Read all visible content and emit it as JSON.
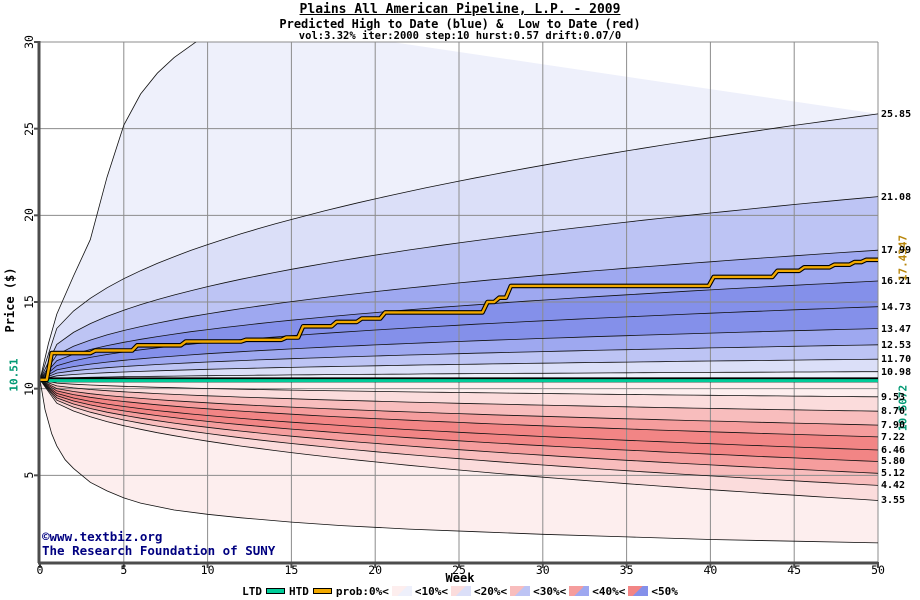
{
  "header": {
    "title": "Plains All American Pipeline, L.P. - 2009",
    "subtitle": "Predicted High to Date (blue) &  Low to Date (red)",
    "params": "vol:3.32% iter:2000 step:10 hurst:0.57 drift:0.07/0"
  },
  "footer": {
    "copyright": "©www.textbiz.org",
    "org": "The Research Foundation of SUNY"
  },
  "legend": {
    "ltd_label": "LTD",
    "htd_label": "HTD",
    "prob_label": "prob:0%<",
    "bands": [
      {
        "label": "<10%<"
      },
      {
        "label": "<20%<"
      },
      {
        "label": "<30%<"
      },
      {
        "label": "<40%<"
      },
      {
        "label": "<50%"
      }
    ]
  },
  "chart_data": {
    "type": "area",
    "subtype": "probability-fan-contour",
    "title": "Plains All American Pipeline, L.P. - 2009",
    "xlabel": "Week",
    "ylabel": "Price ($)",
    "xlim": [
      0,
      50
    ],
    "ylim": [
      0,
      30
    ],
    "x_ticks": [
      0,
      5,
      10,
      15,
      20,
      25,
      30,
      35,
      40,
      45,
      50
    ],
    "y_ticks": [
      5,
      10,
      15,
      20,
      25,
      30
    ],
    "start_price": 10.51,
    "curve_exponent": 0.42,
    "high_deciles": {
      "percents": [
        10,
        20,
        30,
        40,
        50,
        60,
        70,
        80,
        90
      ],
      "week50_values": [
        25.85,
        21.08,
        17.99,
        16.21,
        14.73,
        13.47,
        12.53,
        11.7,
        10.98
      ]
    },
    "low_deciles": {
      "percents": [
        90,
        80,
        70,
        60,
        50,
        40,
        30,
        20,
        10
      ],
      "week50_values": [
        9.53,
        8.7,
        7.9,
        7.22,
        6.46,
        5.8,
        5.12,
        4.42,
        3.55
      ]
    },
    "max_high_curve": [
      [
        0,
        10.51
      ],
      [
        0.5,
        12.6
      ],
      [
        1,
        14.3
      ],
      [
        2,
        16.5
      ],
      [
        3,
        18.6
      ],
      [
        4,
        22.2
      ],
      [
        5,
        25.2
      ],
      [
        6,
        27.0
      ],
      [
        7,
        28.2
      ],
      [
        8,
        29.1
      ],
      [
        9.3,
        30.0
      ],
      [
        10.5,
        31.5
      ]
    ],
    "min_low_curve": [
      [
        0,
        10.51
      ],
      [
        0.3,
        8.8
      ],
      [
        0.7,
        7.4
      ],
      [
        1,
        6.7
      ],
      [
        1.5,
        5.9
      ],
      [
        2,
        5.4
      ],
      [
        3,
        4.6
      ],
      [
        4,
        4.1
      ],
      [
        5,
        3.7
      ],
      [
        6,
        3.4
      ],
      [
        8,
        3.0
      ],
      [
        10,
        2.75
      ],
      [
        12,
        2.55
      ],
      [
        15,
        2.3
      ],
      [
        18,
        2.1
      ],
      [
        22,
        1.9
      ],
      [
        26,
        1.75
      ],
      [
        30,
        1.6
      ],
      [
        35,
        1.45
      ],
      [
        40,
        1.3
      ],
      [
        45,
        1.2
      ],
      [
        50,
        1.1
      ]
    ],
    "htd_steps": [
      [
        0,
        10.51
      ],
      [
        0.4,
        12.05
      ],
      [
        3,
        12.2
      ],
      [
        5.5,
        12.5
      ],
      [
        8.4,
        12.72
      ],
      [
        12,
        12.82
      ],
      [
        14.4,
        12.95
      ],
      [
        15.4,
        13.6
      ],
      [
        17.4,
        13.85
      ],
      [
        18.9,
        14.05
      ],
      [
        20.3,
        14.4
      ],
      [
        26.4,
        15.0
      ],
      [
        27.1,
        15.25
      ],
      [
        27.8,
        15.93
      ],
      [
        39.9,
        16.45
      ],
      [
        43.7,
        16.8
      ],
      [
        45.3,
        17.0
      ],
      [
        47.1,
        17.15
      ],
      [
        48.3,
        17.3
      ],
      [
        49,
        17.4347
      ]
    ],
    "htd_end_label": "17.4347",
    "ltd": {
      "start": 10.51,
      "end": 10.5072,
      "start_label": "10.51",
      "end_label": "10.5072"
    },
    "colors": {
      "htd_line": "#f2a900",
      "htd_label": "#b8860b",
      "ltd_line": "#00cc99",
      "ltd_label": "#009973",
      "blue_bands": [
        "#eef0fb",
        "#dbdff8",
        "#bdc4f4",
        "#9ea8f0",
        "#8490ea"
      ],
      "red_bands": [
        "#fdeeee",
        "#fbdcdc",
        "#f8bdbd",
        "#f59d9d",
        "#f28585"
      ],
      "grid": "#8c8c8c",
      "axis": "#4d4d4d",
      "contour": "#101010",
      "copyright": "#000080"
    }
  }
}
